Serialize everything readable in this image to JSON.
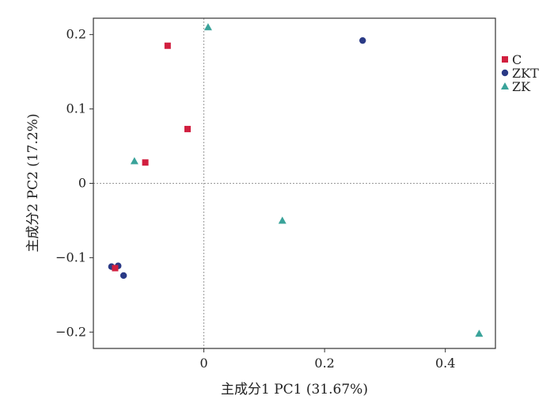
{
  "chart_data": {
    "type": "scatter",
    "xlabel": "主成分1 PC1 (31.67%)",
    "ylabel": "主成分2 PC2 (17.2%)",
    "xlim": [
      -0.183,
      0.483
    ],
    "ylim": [
      -0.222,
      0.222
    ],
    "xticks": [
      0,
      0.2,
      0.4
    ],
    "xtick_labels": [
      "0",
      "0.2",
      "0.4"
    ],
    "yticks": [
      -0.2,
      -0.1,
      0,
      0.1,
      0.2
    ],
    "ytick_labels": [
      "−0.2",
      "−0.1",
      "0",
      "0.1",
      "0.2"
    ],
    "reference_lines": {
      "x": 0,
      "y": 0,
      "style": "dotted"
    },
    "legend_position": "right",
    "series": [
      {
        "name": "C",
        "marker": "square",
        "color": "#d11f3f",
        "points": [
          [
            -0.06,
            0.185
          ],
          [
            -0.027,
            0.073
          ],
          [
            -0.097,
            0.028
          ],
          [
            -0.147,
            -0.114
          ]
        ]
      },
      {
        "name": "ZKT",
        "marker": "circle",
        "color": "#2a3a86",
        "points": [
          [
            0.263,
            0.192
          ],
          [
            -0.153,
            -0.112
          ],
          [
            -0.142,
            -0.111
          ],
          [
            -0.133,
            -0.124
          ]
        ]
      },
      {
        "name": "ZK",
        "marker": "triangle",
        "color": "#3aa39a",
        "points": [
          [
            0.007,
            0.21
          ],
          [
            -0.115,
            0.03
          ],
          [
            0.13,
            -0.05
          ],
          [
            0.456,
            -0.202
          ]
        ]
      }
    ]
  }
}
